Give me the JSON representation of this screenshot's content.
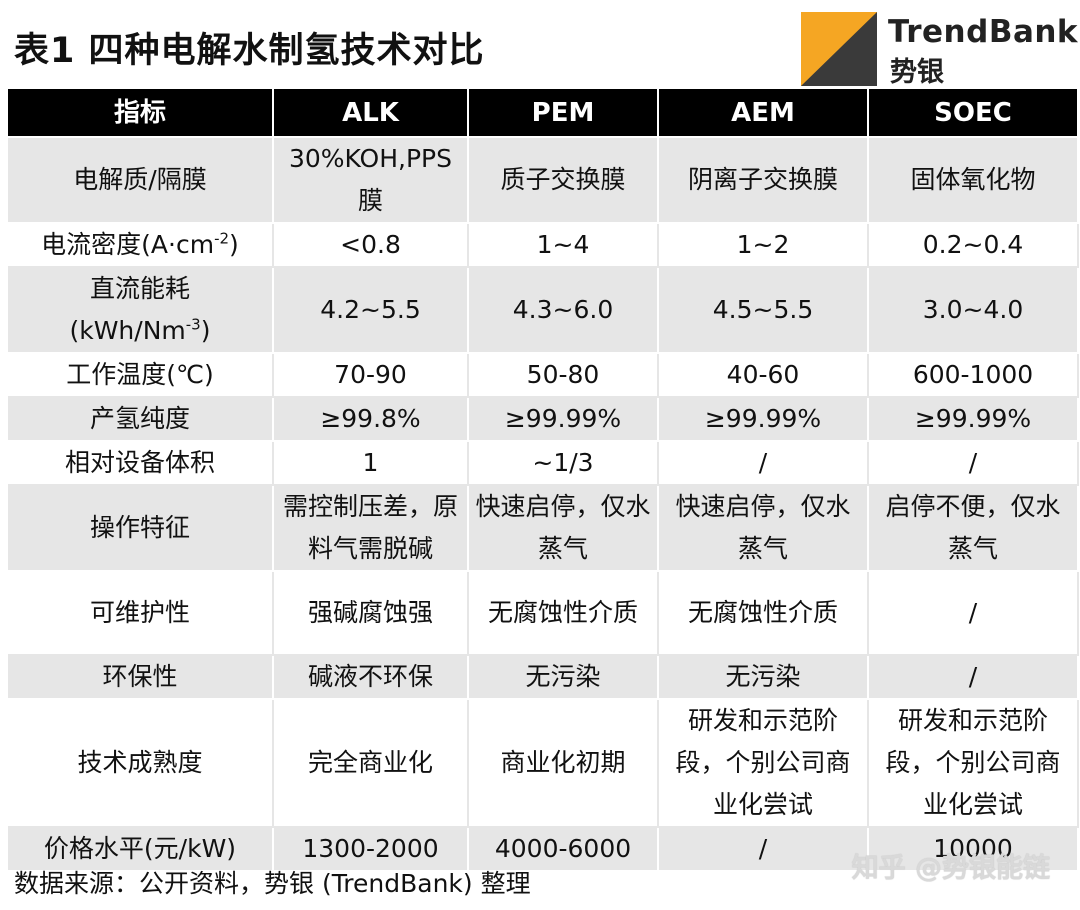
{
  "title": "表1 四种电解水制氢技术对比",
  "logo": {
    "name": "TrendBank",
    "sub": "势银",
    "icon": "trendbank-logo-icon"
  },
  "table": {
    "headers": [
      "指标",
      "ALK",
      "PEM",
      "AEM",
      "SOEC"
    ],
    "rows": [
      {
        "label": "电解质/隔膜",
        "cells": [
          "30%KOH,PPS膜",
          "质子交换膜",
          "阴离子交换膜",
          "固体氧化物"
        ]
      },
      {
        "label_main": "电流密度(A·cm",
        "label_sup": "-2",
        "label_tail": ")",
        "cells": [
          "<0.8",
          "1~4",
          "1~2",
          "0.2~0.4"
        ]
      },
      {
        "label_line1": "直流能耗",
        "label_main": "(kWh/Nm",
        "label_sup": "-3",
        "label_tail": ")",
        "cells": [
          "4.2~5.5",
          "4.3~6.0",
          "4.5~5.5",
          "3.0~4.0"
        ]
      },
      {
        "label": "工作温度(℃)",
        "cells": [
          "70-90",
          "50-80",
          "40-60",
          "600-1000"
        ]
      },
      {
        "label": "产氢纯度",
        "cells": [
          "≥99.8%",
          "≥99.99%",
          "≥99.99%",
          "≥99.99%"
        ]
      },
      {
        "label": "相对设备体积",
        "cells": [
          "1",
          "~1/3",
          "/",
          "/"
        ]
      },
      {
        "label": "操作特征",
        "cells": [
          "需控制压差，原料气需脱碱",
          "快速启停，仅水蒸气",
          "快速启停，仅水蒸气",
          "启停不便，仅水蒸气"
        ]
      },
      {
        "label": "可维护性",
        "cells": [
          "强碱腐蚀强",
          "无腐蚀性介质",
          "无腐蚀性介质",
          "/"
        ]
      },
      {
        "label": "环保性",
        "cells": [
          "碱液不环保",
          "无污染",
          "无污染",
          "/"
        ]
      },
      {
        "label": "技术成熟度",
        "cells": [
          "完全商业化",
          "商业化初期",
          "研发和示范阶段，个别公司商业化尝试",
          "研发和示范阶段，个别公司商业化尝试"
        ]
      },
      {
        "label": "价格水平(元/kW)",
        "cells": [
          "1300-2000",
          "4000-6000",
          "/",
          "10000"
        ]
      }
    ]
  },
  "footer": "数据来源：公开资料，势银 (TrendBank)  整理",
  "watermark": "知乎 @势银能链",
  "colors": {
    "header_bg": "#000000",
    "stripe": "#e6e6e6",
    "logo_orange": "#f5a623",
    "logo_dark": "#3a3a3a"
  }
}
